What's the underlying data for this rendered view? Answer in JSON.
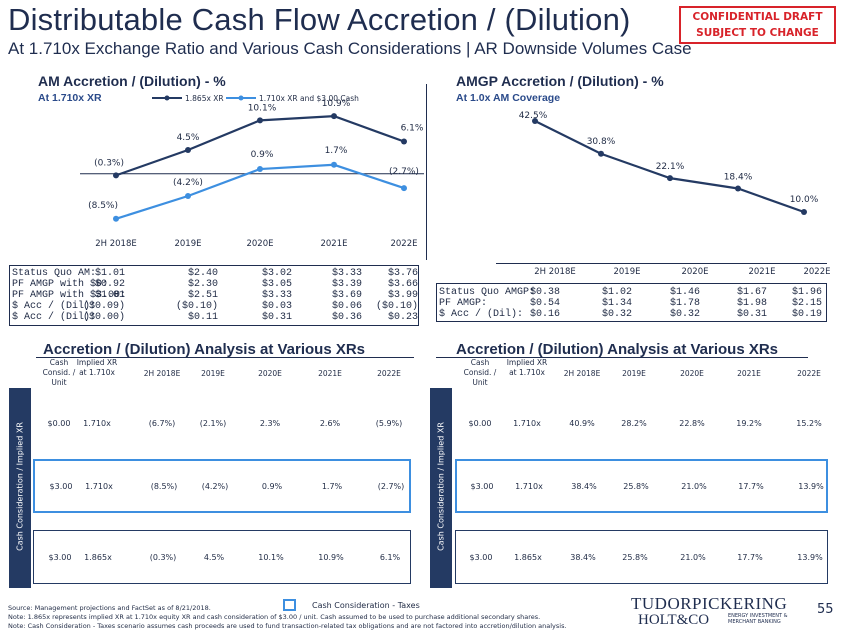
{
  "header": {
    "title": "Distributable Cash Flow Accretion / (Dilution)",
    "subtitle": "At 1.710x Exchange Ratio and Various Cash Considerations | AR Downside Volumes Case",
    "confidential_line1": "CONFIDENTIAL DRAFT",
    "confidential_line2": "SUBJECT TO CHANGE"
  },
  "am_chart": {
    "title": "AM Accretion / (Dilution) - %",
    "subtitle": "At 1.710x XR"
  },
  "amgp_chart": {
    "title": "AMGP Accretion / (Dilution) - %",
    "subtitle": "At 1.0x AM Coverage"
  },
  "chart_data": [
    {
      "type": "line",
      "categories": [
        "2H 2018E",
        "2019E",
        "2020E",
        "2021E",
        "2022E"
      ],
      "series": [
        {
          "name": "1.865x XR",
          "values": [
            -0.3,
            4.5,
            10.1,
            10.9,
            6.1
          ],
          "labels": [
            "(0.3%)",
            "4.5%",
            "10.1%",
            "10.9%",
            "6.1%"
          ],
          "color": "#243a63"
        },
        {
          "name": "1.710x XR and $3.00 Cash",
          "values": [
            -8.5,
            -4.2,
            0.9,
            1.7,
            -2.7
          ],
          "labels": [
            "(8.5%)",
            "(4.2%)",
            "0.9%",
            "1.7%",
            "(2.7%)"
          ],
          "color": "#3d8fe0"
        }
      ],
      "ylim": [
        -11,
        13
      ],
      "legend": "top"
    },
    {
      "type": "line",
      "categories": [
        "2H 2018E",
        "2019E",
        "2020E",
        "2021E",
        "2022E"
      ],
      "series": [
        {
          "values": [
            42.5,
            30.8,
            22.1,
            18.4,
            10.0
          ],
          "labels": [
            "42.5%",
            "30.8%",
            "22.1%",
            "18.4%",
            "10.0%"
          ],
          "color": "#243a63"
        }
      ],
      "ylim": [
        5,
        45
      ]
    }
  ],
  "am_stats": {
    "columns": [
      "2H 2018E",
      "2019E",
      "2020E",
      "2021E",
      "2022E"
    ],
    "rows": [
      {
        "label": "Status Quo AM:",
        "values": [
          "$1.01",
          "$2.40",
          "$3.02",
          "$3.33",
          "$3.76"
        ]
      },
      {
        "label": "PF AMGP with $0:",
        "values": [
          "$0.92",
          "$2.30",
          "$3.05",
          "$3.39",
          "$3.66"
        ]
      },
      {
        "label": "PF AMGP with $3.00:",
        "values": [
          "$1.01",
          "$2.51",
          "$3.33",
          "$3.69",
          "$3.99"
        ]
      },
      {
        "label": "$ Acc / (Dil):",
        "values": [
          "($0.09)",
          "($0.10)",
          "$0.03",
          "$0.06",
          "($0.10)"
        ]
      },
      {
        "label": "$ Acc / (Dil):",
        "values": [
          "($0.00)",
          "$0.11",
          "$0.31",
          "$0.36",
          "$0.23"
        ]
      }
    ]
  },
  "amgp_stats": {
    "columns": [
      "2H 2018E",
      "2019E",
      "2020E",
      "2021E",
      "2022E"
    ],
    "rows": [
      {
        "label": "Status Quo AMGP:",
        "values": [
          "$0.38",
          "$1.02",
          "$1.46",
          "$1.67",
          "$1.96"
        ]
      },
      {
        "label": "PF AMGP:",
        "values": [
          "$0.54",
          "$1.34",
          "$1.78",
          "$1.98",
          "$2.15"
        ]
      },
      {
        "label": "$ Acc / (Dil):",
        "values": [
          "$0.16",
          "$0.32",
          "$0.32",
          "$0.31",
          "$0.19"
        ]
      }
    ]
  },
  "xr_tables": [
    {
      "title": "Accretion / (Dilution) Analysis at Various XRs",
      "sidebar_label": "Cash Consideration / Implied XR",
      "headers": [
        "Cash Consid. / Unit",
        "Implied XR at 1.710x",
        "2H 2018E",
        "2019E",
        "2020E",
        "2021E",
        "2022E"
      ],
      "rows": [
        {
          "cells": [
            "$0.00",
            "1.710x",
            "(6.7%)",
            "(2.1%)",
            "2.3%",
            "2.6%",
            "(5.9%)"
          ],
          "style": "plain"
        },
        {
          "cells": [
            "$3.00",
            "1.710x",
            "(8.5%)",
            "(4.2%)",
            "0.9%",
            "1.7%",
            "(2.7%)"
          ],
          "style": "hl"
        },
        {
          "cells": [
            "$3.00",
            "1.865x",
            "(0.3%)",
            "4.5%",
            "10.1%",
            "10.9%",
            "6.1%"
          ],
          "style": "dark"
        }
      ]
    },
    {
      "title": "Accretion / (Dilution) Analysis at Various XRs",
      "sidebar_label": "Cash Consideration / Implied XR",
      "headers": [
        "Cash Consid. / Unit",
        "Implied XR at 1.710x",
        "2H 2018E",
        "2019E",
        "2020E",
        "2021E",
        "2022E"
      ],
      "rows": [
        {
          "cells": [
            "$0.00",
            "1.710x",
            "40.9%",
            "28.2%",
            "22.8%",
            "19.2%",
            "15.2%"
          ],
          "style": "plain"
        },
        {
          "cells": [
            "$3.00",
            "1.710x",
            "38.4%",
            "25.8%",
            "21.0%",
            "17.7%",
            "13.9%"
          ],
          "style": "hl"
        },
        {
          "cells": [
            "$3.00",
            "1.865x",
            "38.4%",
            "25.8%",
            "21.0%",
            "17.7%",
            "13.9%"
          ],
          "style": "dark"
        }
      ]
    }
  ],
  "footer": {
    "legend_label": "Cash Consideration - Taxes",
    "source": "Source: Management projections and FactSet as of 8/21/2018.",
    "note1": "Note: 1.865x represents implied XR at 1.710x equity XR and cash consideration of $3.00 / unit. Cash assumed to be used to purchase additional secondary shares.",
    "note2": "Note: Cash Consideration - Taxes scenario assumes cash proceeds are used to fund transaction-related tax obligations and are not factored into accretion/dilution analysis.",
    "logo_line1": "TUDORPICKERING",
    "logo_line2": "HOLT&CO",
    "logo_tag1": "ENERGY INVESTMENT &",
    "logo_tag2": "MERCHANT BANKING",
    "page_number": "55"
  },
  "colors": {
    "navy": "#1f2d4f",
    "dark_series": "#243a63",
    "light_series": "#3d8fe0",
    "confidential": "#d8232a"
  }
}
